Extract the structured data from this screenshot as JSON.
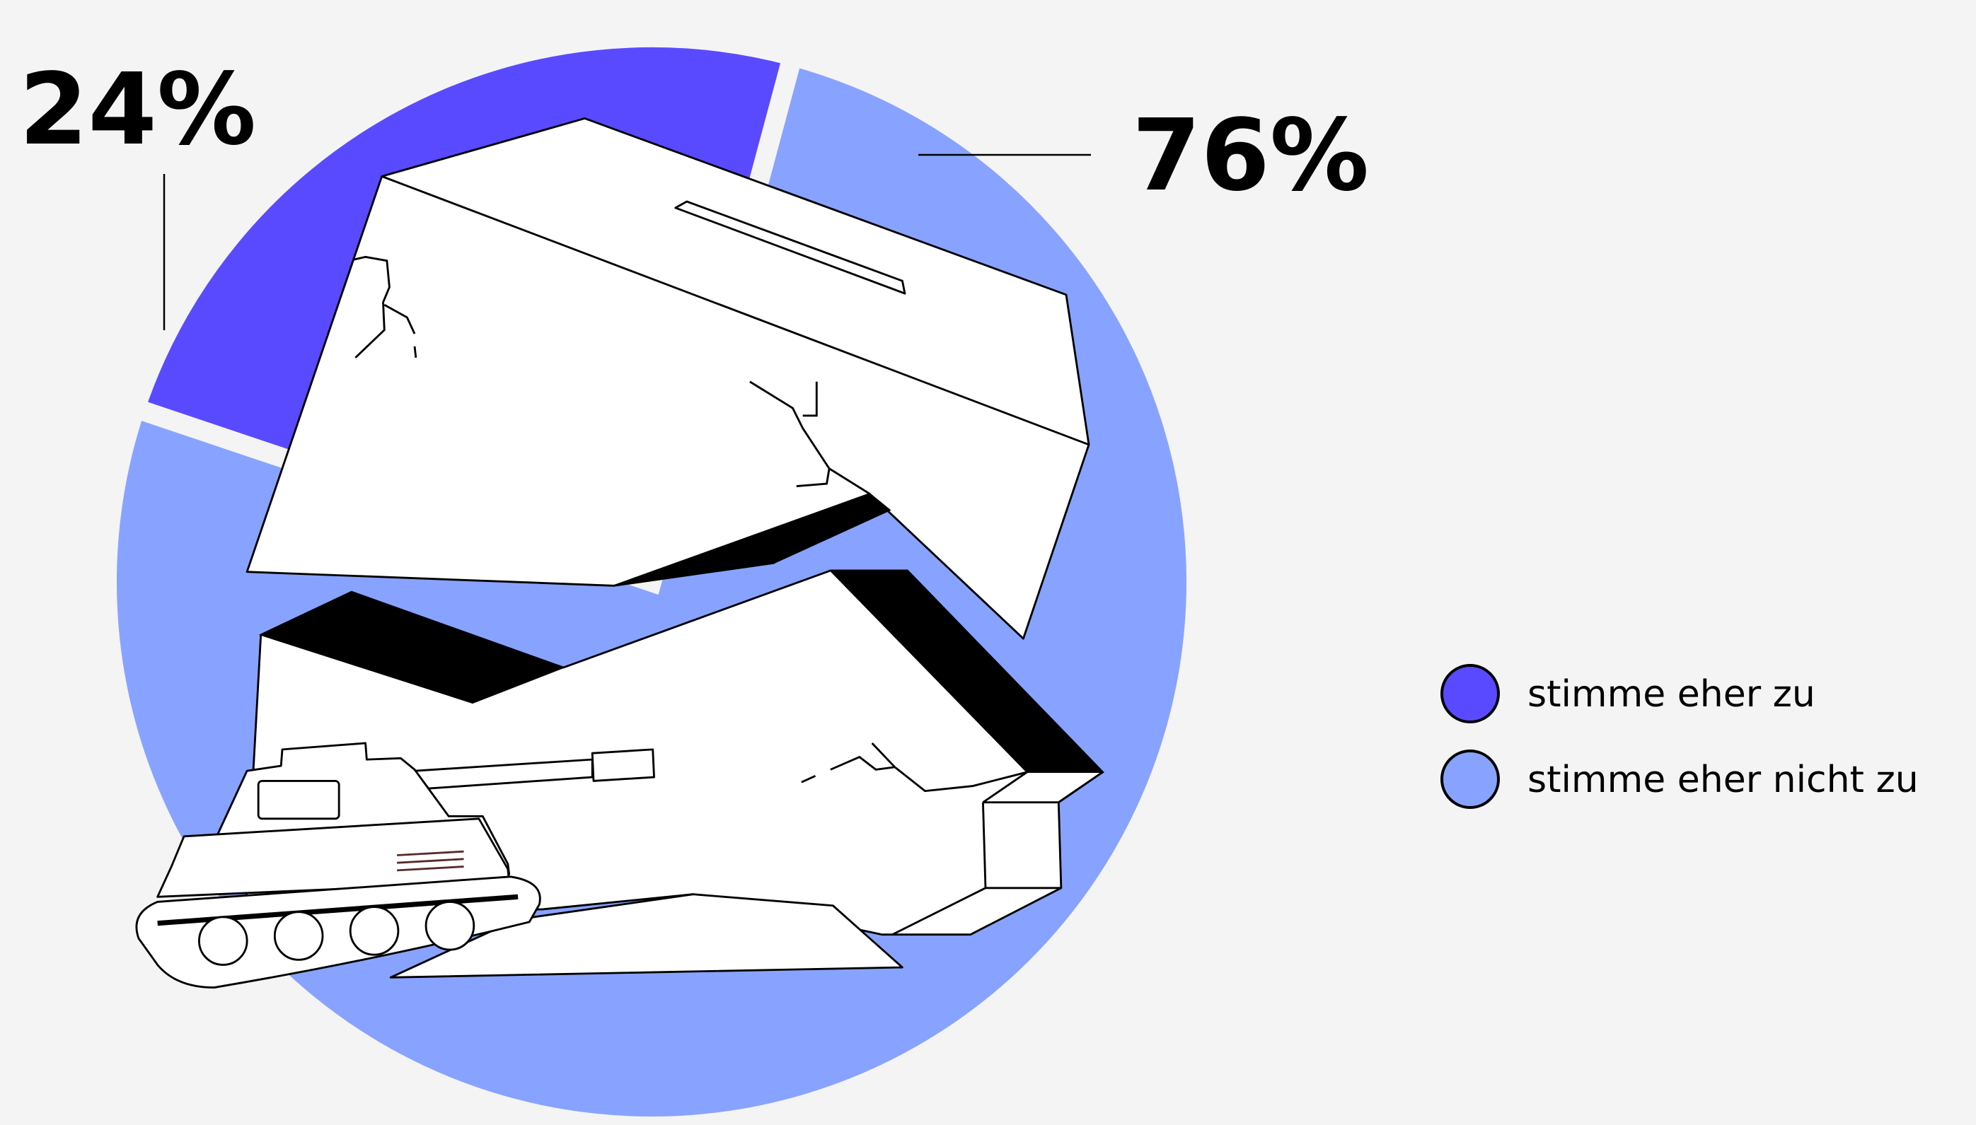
{
  "chart_data": {
    "type": "pie",
    "categories": [
      "stimme eher zu",
      "stimme eher nicht zu"
    ],
    "values": [
      24,
      76
    ],
    "value_labels": [
      "24%",
      "76%"
    ],
    "colors": [
      "#5a4aff",
      "#88a3ff"
    ]
  }
}
